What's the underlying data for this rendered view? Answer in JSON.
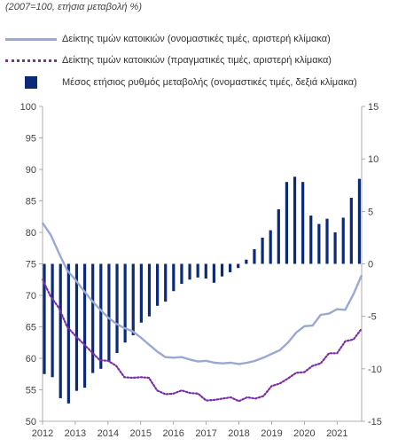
{
  "subtitle": "(2007=100, ετήσια μεταβολή %)",
  "chart_data": {
    "type": "bar+line",
    "legend": [
      {
        "label": "Δείκτης τιμών κατοικιών (ονομαστικές τιμές, αριστερή κλίμακα)",
        "kind": "line",
        "color": "#9aa8d4"
      },
      {
        "label": "Δείκτης τιμών κατοικιών (πραγματικές τιμές, αριστερή κλίμακα)",
        "kind": "dotted",
        "color": "#7a2fa8"
      },
      {
        "label": "Μέσος ετήσιος ρυθμός μεταβολής (ονομαστικές τιμές, δεξιά κλίμακα)",
        "kind": "bar",
        "color": "#0b2b78"
      }
    ],
    "x_ticks": [
      "2012",
      "2013",
      "2014",
      "2015",
      "2016",
      "2017",
      "2018",
      "2019",
      "2020",
      "2021"
    ],
    "x_range": [
      2012,
      2021.75
    ],
    "left_axis": {
      "range": [
        50,
        100
      ],
      "ticks": [
        50,
        55,
        60,
        65,
        70,
        75,
        80,
        85,
        90,
        95,
        100
      ]
    },
    "right_axis": {
      "range": [
        -15,
        15
      ],
      "ticks": [
        -15,
        -10,
        -5,
        0,
        5,
        10,
        15
      ]
    },
    "bars": {
      "name": "Μέσος ετήσιος ρυθμός μεταβολής (ονομαστικές τιμές, δεξιά κλίμακα)",
      "axis": "right",
      "x": [
        "2012Q1",
        "2012Q2",
        "2012Q3",
        "2012Q4",
        "2013Q1",
        "2013Q2",
        "2013Q3",
        "2013Q4",
        "2014Q1",
        "2014Q2",
        "2014Q3",
        "2014Q4",
        "2015Q1",
        "2015Q2",
        "2015Q3",
        "2015Q4",
        "2016Q1",
        "2016Q2",
        "2016Q3",
        "2016Q4",
        "2017Q1",
        "2017Q2",
        "2017Q3",
        "2017Q4",
        "2018Q1",
        "2018Q2",
        "2018Q3",
        "2018Q4",
        "2019Q1",
        "2019Q2",
        "2019Q3",
        "2019Q4",
        "2020Q1",
        "2020Q2",
        "2020Q3",
        "2020Q4",
        "2021Q1",
        "2021Q2",
        "2021Q3",
        "2021Q4"
      ],
      "values": [
        -10.5,
        -10.8,
        -12.8,
        -13.3,
        -12.1,
        -11.8,
        -10.4,
        -10.0,
        -9.3,
        -8.5,
        -7.5,
        -6.8,
        -5.6,
        -5.0,
        -4.0,
        -3.6,
        -2.6,
        -1.9,
        -1.5,
        -1.3,
        -1.4,
        -1.8,
        -1.2,
        -0.8,
        -0.4,
        0.4,
        1.4,
        2.5,
        3.2,
        5.2,
        7.8,
        8.3,
        7.8,
        4.6,
        3.8,
        4.3,
        3.0,
        4.4,
        6.3,
        8.1
      ]
    },
    "series": [
      {
        "name": "Δείκτης τιμών κατοικιών (ονομαστικές τιμές, αριστερή κλίμακα)",
        "axis": "left",
        "x": [
          2012.0,
          2012.25,
          2012.5,
          2012.75,
          2013.0,
          2013.25,
          2013.5,
          2013.75,
          2014.0,
          2014.25,
          2014.5,
          2014.75,
          2015.0,
          2015.25,
          2015.5,
          2015.75,
          2016.0,
          2016.25,
          2016.5,
          2016.75,
          2017.0,
          2017.25,
          2017.5,
          2017.75,
          2018.0,
          2018.25,
          2018.5,
          2018.75,
          2019.0,
          2019.25,
          2019.5,
          2019.75,
          2020.0,
          2020.25,
          2020.5,
          2020.75,
          2021.0,
          2021.25,
          2021.5,
          2021.75
        ],
        "values": [
          81.5,
          79.6,
          76.7,
          74.0,
          72.5,
          70.8,
          69.2,
          67.8,
          66.5,
          65.5,
          64.8,
          64.3,
          63.3,
          62.2,
          61.1,
          60.2,
          60.1,
          60.2,
          59.8,
          59.5,
          59.6,
          59.3,
          59.2,
          59.3,
          59.1,
          59.3,
          59.6,
          60.1,
          60.7,
          61.3,
          62.5,
          64.1,
          65.1,
          65.2,
          66.9,
          67.1,
          67.8,
          67.7,
          70.2,
          73.2
        ]
      },
      {
        "name": "Δείκτης τιμών κατοικιών (πραγματικές τιμές, αριστερή κλίμακα)",
        "axis": "left",
        "x": [
          2012.0,
          2012.25,
          2012.5,
          2012.75,
          2013.0,
          2013.25,
          2013.5,
          2013.75,
          2014.0,
          2014.25,
          2014.5,
          2014.75,
          2015.0,
          2015.25,
          2015.5,
          2015.75,
          2016.0,
          2016.25,
          2016.5,
          2016.75,
          2017.0,
          2017.25,
          2017.5,
          2017.75,
          2018.0,
          2018.25,
          2018.5,
          2018.75,
          2019.0,
          2019.25,
          2019.5,
          2019.75,
          2020.0,
          2020.25,
          2020.5,
          2020.75,
          2021.0,
          2021.25,
          2021.5,
          2021.75
        ],
        "values": [
          72.5,
          69.8,
          68.0,
          65.0,
          63.6,
          62.3,
          61.0,
          59.7,
          59.6,
          58.8,
          57.0,
          56.9,
          57.0,
          56.9,
          54.9,
          54.3,
          54.4,
          54.9,
          54.5,
          54.4,
          53.3,
          53.4,
          53.6,
          53.8,
          53.2,
          53.8,
          53.6,
          54.0,
          55.6,
          56.0,
          56.8,
          57.7,
          57.8,
          58.8,
          59.2,
          60.8,
          60.8,
          62.7,
          63.0,
          64.7
        ]
      }
    ],
    "grid": false,
    "legend_position": "top"
  }
}
